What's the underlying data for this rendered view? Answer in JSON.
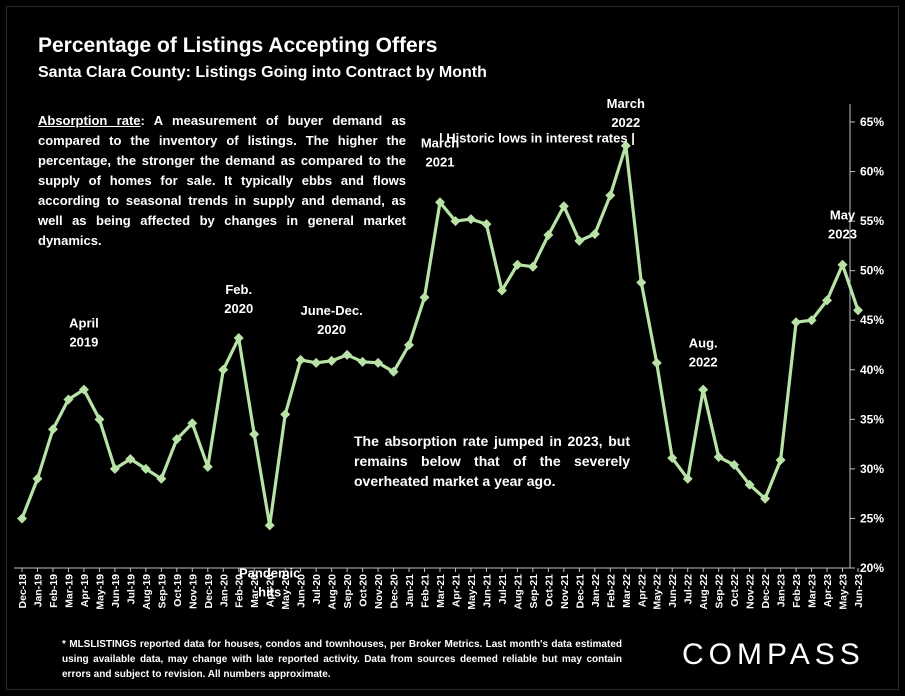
{
  "header": {
    "title": "Percentage of Listings Accepting Offers",
    "subtitle": "Santa Clara County: Listings Going into Contract by Month"
  },
  "description": {
    "term": "Absorption rate",
    "text": ":  A measurement of buyer demand as compared to the inventory of listings. The higher the percentage, the stronger the demand as compared to the supply of homes for sale. It typically ebbs and flows according to seasonal trends in supply and demand, as well as being affected by changes in general market dynamics."
  },
  "note": "The absorption rate jumped in 2023, but remains below that of the severely overheated market a year ago.",
  "footnote": "* MLSLISTINGS reported data for houses, condos and townhouses, per Broker Metrics. Last month's data estimated using available data, may change with late reported activity. Data from sources deemed reliable but may contain errors and subject to revision. All numbers approximate.",
  "brand": "COMPASS",
  "colors": {
    "background": "#000000",
    "line": "#b9e3a6",
    "text": "#ffffff",
    "axis": "#bfbfbf"
  },
  "chart_data": {
    "type": "line",
    "categories": [
      "Dec-18",
      "Jan-19",
      "Feb-19",
      "Mar-19",
      "Apr-19",
      "May-19",
      "Jun-19",
      "Jul-19",
      "Aug-19",
      "Sep-19",
      "Oct-19",
      "Nov-19",
      "Dec-19",
      "Jan-20",
      "Feb-20",
      "Mar-20",
      "Apr-20",
      "May-20",
      "Jun-20",
      "Jul-20",
      "Aug-20",
      "Sep-20",
      "Oct-20",
      "Nov-20",
      "Dec-20",
      "Jan-21",
      "Feb-21",
      "Mar-21",
      "Apr-21",
      "May-21",
      "Jun-21",
      "Jul-21",
      "Aug-21",
      "Sep-21",
      "Oct-21",
      "Nov-21",
      "Dec-21",
      "Jan-22",
      "Feb-22",
      "Mar-22",
      "Apr-22",
      "May-22",
      "Jun-22",
      "Jul-22",
      "Aug-22",
      "Sep-22",
      "Oct-22",
      "Nov-22",
      "Dec-22",
      "Jan-23",
      "Feb-23",
      "Mar-23",
      "Apr-23",
      "May-23",
      "Jun-23"
    ],
    "values": [
      25.0,
      29.0,
      34.0,
      37.0,
      38.0,
      35.0,
      30.0,
      31.0,
      30.0,
      29.0,
      33.0,
      34.6,
      30.2,
      40.0,
      43.2,
      33.5,
      24.3,
      35.5,
      41.0,
      40.7,
      40.9,
      41.5,
      40.8,
      40.7,
      39.8,
      42.5,
      47.3,
      56.9,
      55.0,
      55.2,
      54.7,
      48.0,
      50.6,
      50.4,
      53.6,
      56.5,
      53.0,
      53.7,
      57.6,
      62.6,
      48.8,
      40.7,
      31.1,
      29.0,
      38.0,
      31.2,
      30.4,
      28.4,
      27.0,
      30.9,
      44.8,
      45.0,
      47.0,
      50.6,
      46.0
    ],
    "ylim": [
      20,
      65
    ],
    "yticks": [
      "20%",
      "25%",
      "30%",
      "35%",
      "40%",
      "45%",
      "50%",
      "55%",
      "60%",
      "65%"
    ],
    "y_axis_position": "right",
    "grid": false,
    "marker": "diamond",
    "annotations": [
      {
        "lines": [
          "April",
          "2019"
        ],
        "category": "Apr-19"
      },
      {
        "lines": [
          "Feb.",
          "2020"
        ],
        "category": "Feb-20"
      },
      {
        "lines": [
          "Pandemic",
          "hits"
        ],
        "category": "Apr-20"
      },
      {
        "lines": [
          "June-Dec.",
          "2020"
        ],
        "category": "Aug-20"
      },
      {
        "lines": [
          "March",
          "2021"
        ],
        "category": "Mar-21"
      },
      {
        "lines": [
          "| Historic lows in interest rates |"
        ],
        "category": "Jul-21"
      },
      {
        "lines": [
          "March",
          "2022"
        ],
        "category": "Mar-22"
      },
      {
        "lines": [
          "Aug.",
          "2022"
        ],
        "category": "Aug-22"
      },
      {
        "lines": [
          "May",
          "2023"
        ],
        "category": "May-23"
      }
    ]
  }
}
